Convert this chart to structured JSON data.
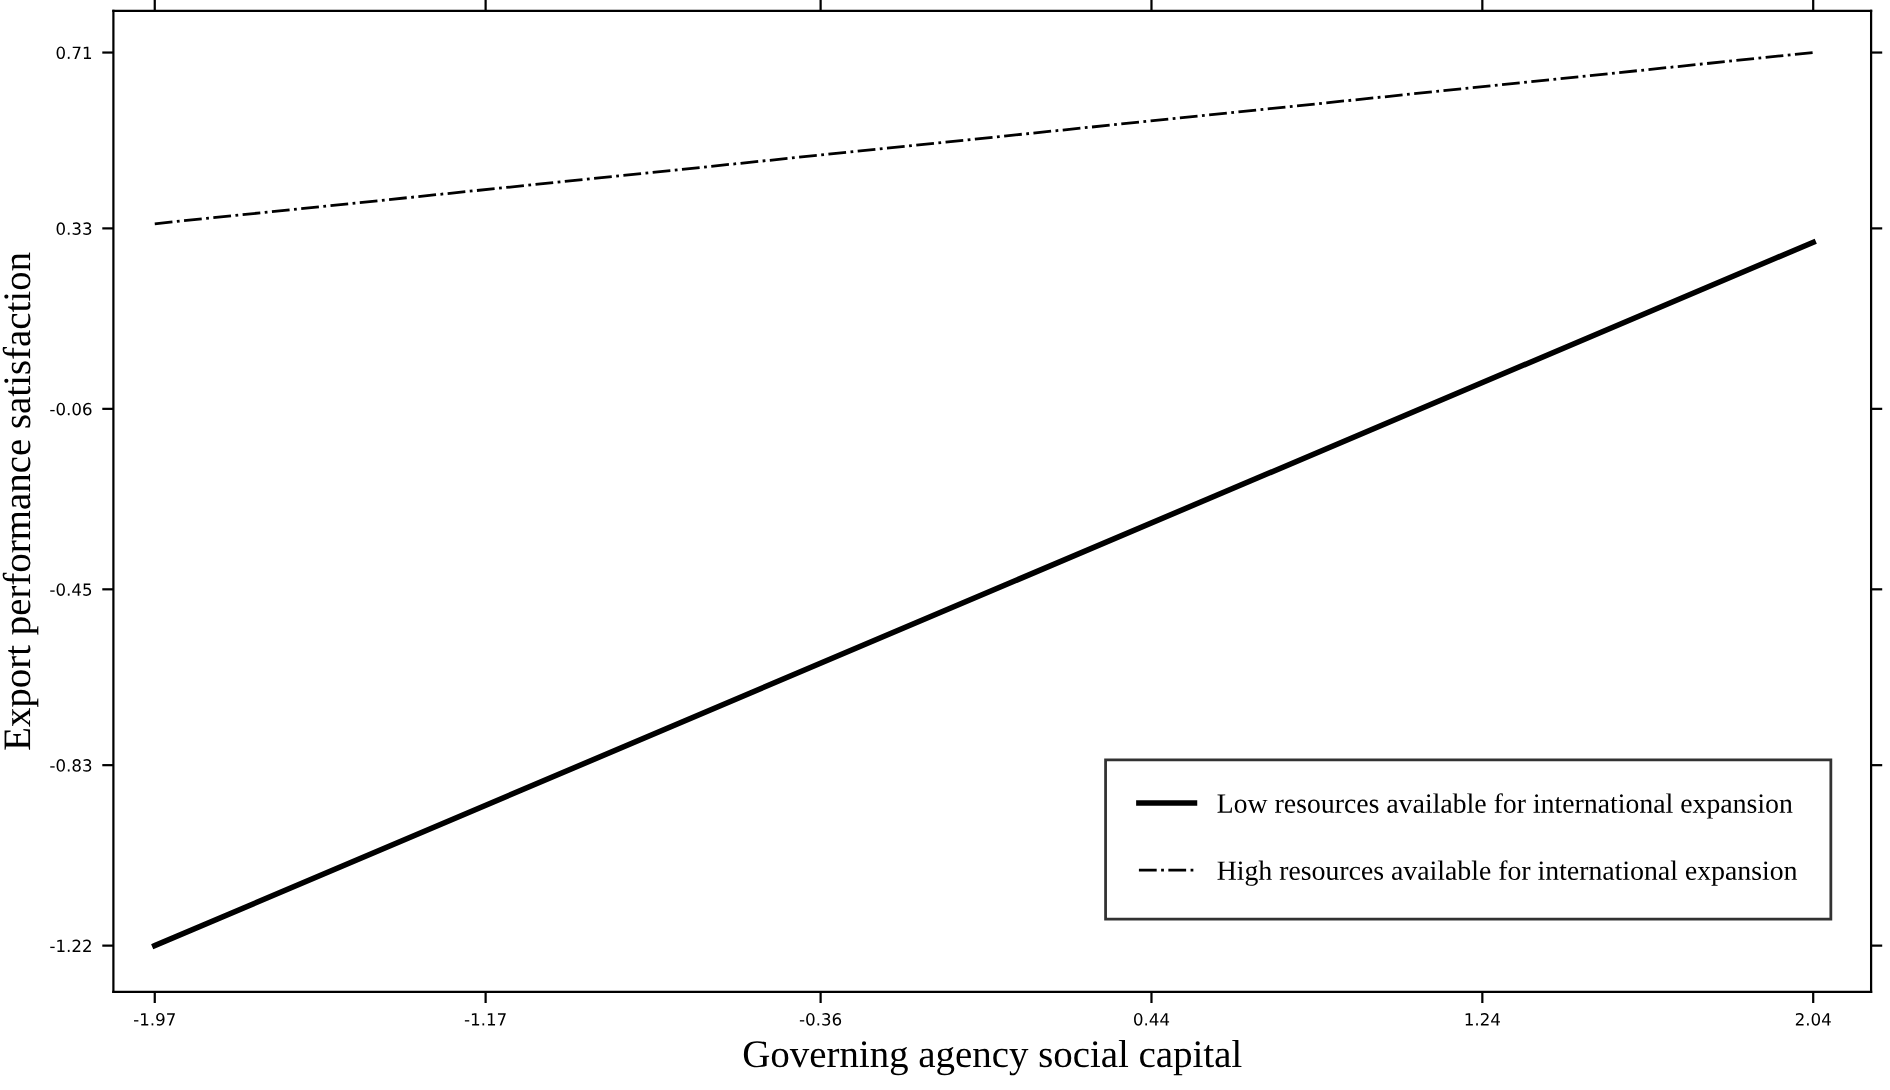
{
  "chart_data": {
    "type": "line",
    "xlabel": "Governing agency social capital",
    "ylabel": "Export performance satisfaction",
    "x": [
      -1.97,
      2.04
    ],
    "series": [
      {
        "name": "Low resources available for international expansion",
        "color": "#000000",
        "values": [
          -1.22,
          0.3
        ],
        "line_style": "solid"
      },
      {
        "name": "High resources available for international expansion",
        "color": "#000000",
        "values": [
          0.34,
          0.71
        ],
        "line_style": "dashdot"
      }
    ],
    "xlim": [
      -2.07,
      2.18
    ],
    "xticks": [
      -1.97,
      -1.17,
      -0.36,
      0.44,
      1.24,
      2.04
    ],
    "ylim": [
      -1.32,
      0.8
    ],
    "yticks": [
      -1.22,
      -0.83,
      -0.45,
      -0.06,
      0.33,
      0.71
    ],
    "grid": false,
    "legend": "bottom right",
    "marker": "none"
  }
}
